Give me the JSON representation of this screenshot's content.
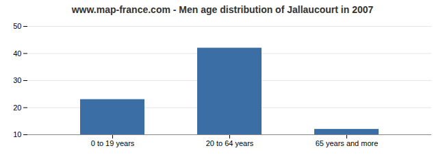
{
  "chart_data": {
    "type": "bar",
    "title": "www.map-france.com - Men age distribution of Jallaucourt in 2007",
    "categories": [
      "0 to 19 years",
      "20 to 64 years",
      "65 years and more"
    ],
    "values": [
      23,
      42,
      12
    ],
    "color": "#3a6ea5",
    "ylim": [
      10,
      50
    ],
    "yticks": [
      10,
      20,
      30,
      40,
      50
    ],
    "grid": true
  }
}
